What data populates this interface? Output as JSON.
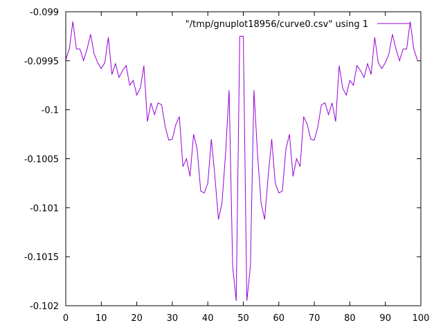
{
  "chart_data": {
    "type": "line",
    "title": "",
    "xlabel": "",
    "ylabel": "",
    "xlim": [
      0,
      100
    ],
    "ylim": [
      -0.102,
      -0.099
    ],
    "grid": false,
    "legend_position": "top-right",
    "x_ticks": [
      {
        "value": 0,
        "label": "0"
      },
      {
        "value": 10,
        "label": "10"
      },
      {
        "value": 20,
        "label": "20"
      },
      {
        "value": 30,
        "label": "30"
      },
      {
        "value": 40,
        "label": "40"
      },
      {
        "value": 50,
        "label": "50"
      },
      {
        "value": 60,
        "label": "60"
      },
      {
        "value": 70,
        "label": "70"
      },
      {
        "value": 80,
        "label": "80"
      },
      {
        "value": 90,
        "label": "90"
      },
      {
        "value": 100,
        "label": "100"
      }
    ],
    "y_ticks": [
      {
        "value": -0.099,
        "label": "-0.099"
      },
      {
        "value": -0.0995,
        "label": "-0.0995"
      },
      {
        "value": -0.1,
        "label": "-0.1"
      },
      {
        "value": -0.1005,
        "label": "-0.1005"
      },
      {
        "value": -0.101,
        "label": "-0.101"
      },
      {
        "value": -0.1015,
        "label": "-0.1015"
      },
      {
        "value": -0.102,
        "label": "-0.102"
      }
    ],
    "series": [
      {
        "name": "\"/tmp/gnuplot18956/curve0.csv\" using 1",
        "color": "#9400d3",
        "y": [
          -0.09949,
          -0.09938,
          -0.0991,
          -0.09938,
          -0.09938,
          -0.0995,
          -0.09938,
          -0.09923,
          -0.09943,
          -0.09952,
          -0.09958,
          -0.09952,
          -0.09926,
          -0.09964,
          -0.09953,
          -0.09967,
          -0.0996,
          -0.09955,
          -0.09975,
          -0.0997,
          -0.09985,
          -0.09978,
          -0.09955,
          -0.10012,
          -0.09993,
          -0.10005,
          -0.09993,
          -0.09995,
          -0.10017,
          -0.10031,
          -0.1003,
          -0.10015,
          -0.10007,
          -0.10058,
          -0.1005,
          -0.10068,
          -0.10025,
          -0.1004,
          -0.10083,
          -0.10085,
          -0.10075,
          -0.1003,
          -0.10068,
          -0.10112,
          -0.10095,
          -0.10045,
          -0.0998,
          -0.1016,
          -0.10195,
          -0.09925,
          -0.09925,
          -0.10195,
          -0.1016,
          -0.0998,
          -0.10045,
          -0.10095,
          -0.10112,
          -0.10068,
          -0.1003,
          -0.10075,
          -0.10085,
          -0.10083,
          -0.1004,
          -0.10025,
          -0.10068,
          -0.1005,
          -0.10058,
          -0.10007,
          -0.10015,
          -0.1003,
          -0.10031,
          -0.10017,
          -0.09995,
          -0.09993,
          -0.10005,
          -0.09993,
          -0.10012,
          -0.09955,
          -0.09978,
          -0.09985,
          -0.0997,
          -0.09975,
          -0.09955,
          -0.0996,
          -0.09967,
          -0.09953,
          -0.09964,
          -0.09926,
          -0.09952,
          -0.09958,
          -0.09952,
          -0.09943,
          -0.09923,
          -0.09938,
          -0.0995,
          -0.09938,
          -0.09938,
          -0.0991,
          -0.09938,
          -0.09949
        ]
      }
    ]
  }
}
